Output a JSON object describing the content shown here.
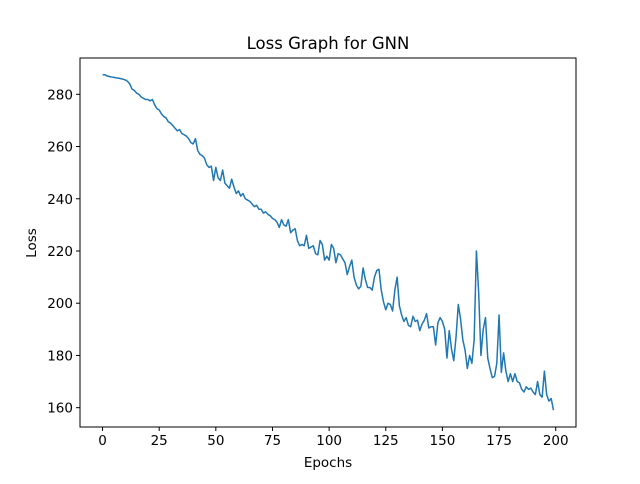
{
  "chart_data": {
    "type": "line",
    "title": "Loss Graph for GNN",
    "xlabel": "Epochs",
    "ylabel": "Loss",
    "x": [
      0,
      1,
      2,
      3,
      4,
      5,
      6,
      7,
      8,
      9,
      10,
      11,
      12,
      13,
      14,
      15,
      16,
      17,
      18,
      19,
      20,
      21,
      22,
      23,
      24,
      25,
      26,
      27,
      28,
      29,
      30,
      31,
      32,
      33,
      34,
      35,
      36,
      37,
      38,
      39,
      40,
      41,
      42,
      43,
      44,
      45,
      46,
      47,
      48,
      49,
      50,
      51,
      52,
      53,
      54,
      55,
      56,
      57,
      58,
      59,
      60,
      61,
      62,
      63,
      64,
      65,
      66,
      67,
      68,
      69,
      70,
      71,
      72,
      73,
      74,
      75,
      76,
      77,
      78,
      79,
      80,
      81,
      82,
      83,
      84,
      85,
      86,
      87,
      88,
      89,
      90,
      91,
      92,
      93,
      94,
      95,
      96,
      97,
      98,
      99,
      100,
      101,
      102,
      103,
      104,
      105,
      106,
      107,
      108,
      109,
      110,
      111,
      112,
      113,
      114,
      115,
      116,
      117,
      118,
      119,
      120,
      121,
      122,
      123,
      124,
      125,
      126,
      127,
      128,
      129,
      130,
      131,
      132,
      133,
      134,
      135,
      136,
      137,
      138,
      139,
      140,
      141,
      142,
      143,
      144,
      145,
      146,
      147,
      148,
      149,
      150,
      151,
      152,
      153,
      154,
      155,
      156,
      157,
      158,
      159,
      160,
      161,
      162,
      163,
      164,
      165,
      166,
      167,
      168,
      169,
      170,
      171,
      172,
      173,
      174,
      175,
      176,
      177,
      178,
      179,
      180,
      181,
      182,
      183,
      184,
      185,
      186,
      187,
      188,
      189,
      190,
      191,
      192,
      193,
      194,
      195,
      196,
      197,
      198,
      199
    ],
    "series": [
      {
        "color": "#1f77b4",
        "values": [
          287.5,
          287.5,
          287,
          286.8,
          286.6,
          286.5,
          286.3,
          286.2,
          286,
          285.8,
          285.5,
          285,
          284,
          282,
          281.5,
          280.5,
          280,
          279,
          278.5,
          278,
          278,
          277.5,
          278,
          276,
          274.5,
          274,
          272.5,
          271.5,
          271,
          269.5,
          269,
          268,
          267,
          266,
          266.5,
          265,
          264.5,
          264,
          263,
          261.5,
          261,
          263,
          258.5,
          257,
          256.5,
          255.5,
          253,
          252,
          252.5,
          247,
          252,
          248,
          247,
          251,
          246,
          245,
          244,
          247.5,
          244.5,
          242,
          243,
          241,
          242,
          240,
          239.5,
          239,
          238,
          237,
          237.5,
          236,
          236,
          234.5,
          235,
          234,
          233.5,
          232.5,
          232,
          231,
          229,
          232,
          230,
          229.5,
          232,
          227,
          228,
          228.5,
          224,
          222,
          222.5,
          222,
          226,
          221,
          221.5,
          222,
          219,
          218.5,
          224,
          222.5,
          216.5,
          218,
          216.5,
          222.5,
          221,
          215.5,
          219,
          218.5,
          217,
          215.5,
          211,
          214,
          216.5,
          210,
          207,
          205.5,
          206.5,
          213.5,
          209,
          206,
          206,
          205,
          210,
          212.5,
          213,
          205,
          200.5,
          197.5,
          200,
          199.5,
          197,
          205,
          210,
          199,
          195.5,
          193,
          194.5,
          191.5,
          191,
          195,
          193,
          193.5,
          189.5,
          192,
          193.5,
          196,
          190.5,
          191,
          191,
          184,
          192.5,
          194.5,
          193,
          190,
          179,
          189.5,
          182.5,
          178,
          187,
          199.5,
          194,
          186,
          182,
          175,
          180,
          177,
          186,
          220,
          204,
          180,
          190,
          194.5,
          179,
          175,
          171.5,
          172,
          177,
          195.5,
          173.5,
          181,
          174,
          170,
          173,
          170,
          173,
          170,
          169.5,
          167,
          166,
          168,
          167,
          167.5,
          166,
          165,
          170,
          165,
          164,
          174,
          165,
          162.5,
          163.5,
          159
        ]
      }
    ],
    "xlim": [
      -9.95,
      208.95
    ],
    "ylim": [
      152.6,
      293.9
    ],
    "xticks": [
      0,
      25,
      50,
      75,
      100,
      125,
      150,
      175,
      200
    ],
    "yticks": [
      160,
      180,
      200,
      220,
      240,
      260,
      280
    ]
  }
}
